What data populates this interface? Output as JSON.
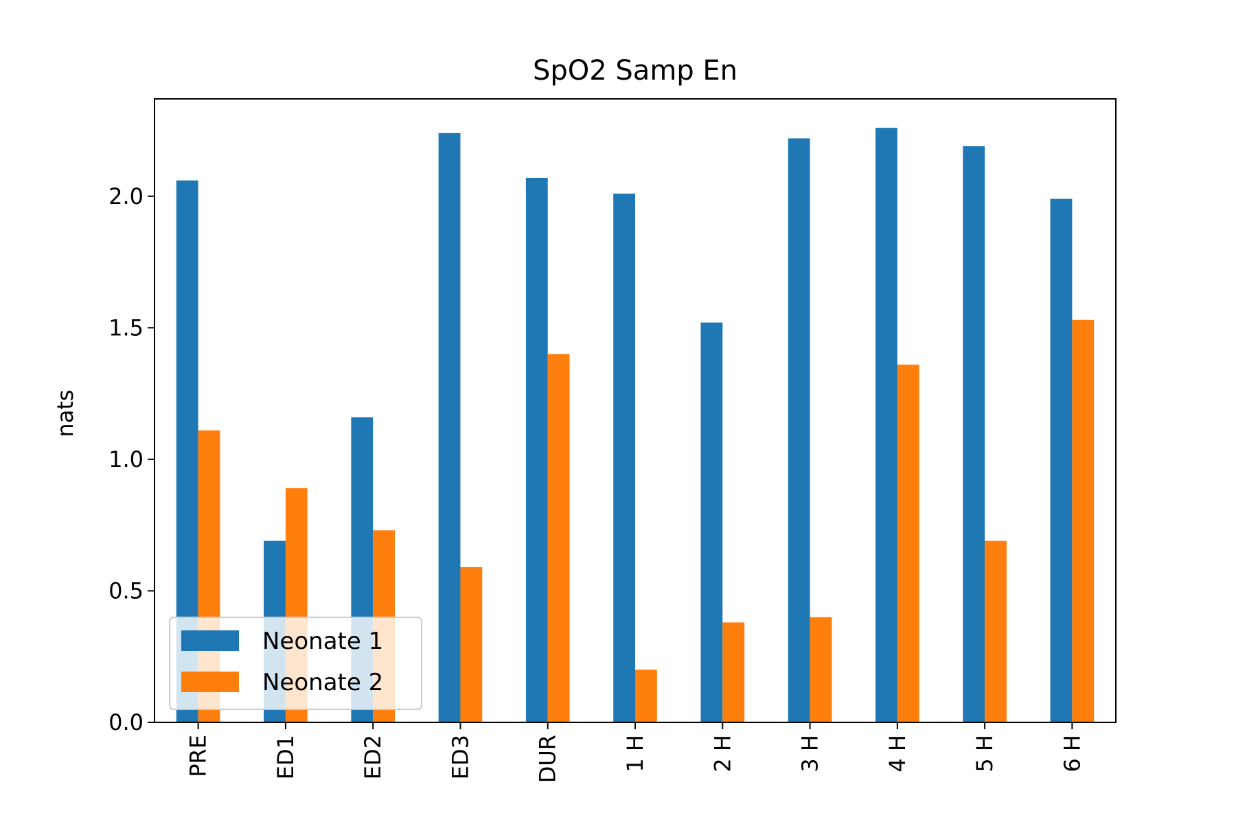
{
  "chart_data": {
    "type": "bar",
    "title": "SpO2 Samp En",
    "xlabel": "",
    "ylabel": "nats",
    "categories": [
      "PRE",
      "ED1",
      "ED2",
      "ED3",
      "DUR",
      "1 H",
      "2 H",
      "3 H",
      "4 H",
      "5 H",
      "6 H"
    ],
    "series": [
      {
        "name": "Neonate 1",
        "color": "#1f77b4",
        "values": [
          2.06,
          0.69,
          1.16,
          2.24,
          2.07,
          2.01,
          1.52,
          2.22,
          2.26,
          2.19,
          1.99
        ]
      },
      {
        "name": "Neonate 2",
        "color": "#ff7f0e",
        "values": [
          1.11,
          0.89,
          0.73,
          0.59,
          1.4,
          0.2,
          0.38,
          0.4,
          1.36,
          0.69,
          1.53
        ]
      }
    ],
    "ylim": [
      0,
      2.37
    ],
    "yticks": [
      "0.0",
      "0.5",
      "1.0",
      "1.5",
      "2.0"
    ],
    "grid": false,
    "legend_position": "lower-left"
  }
}
